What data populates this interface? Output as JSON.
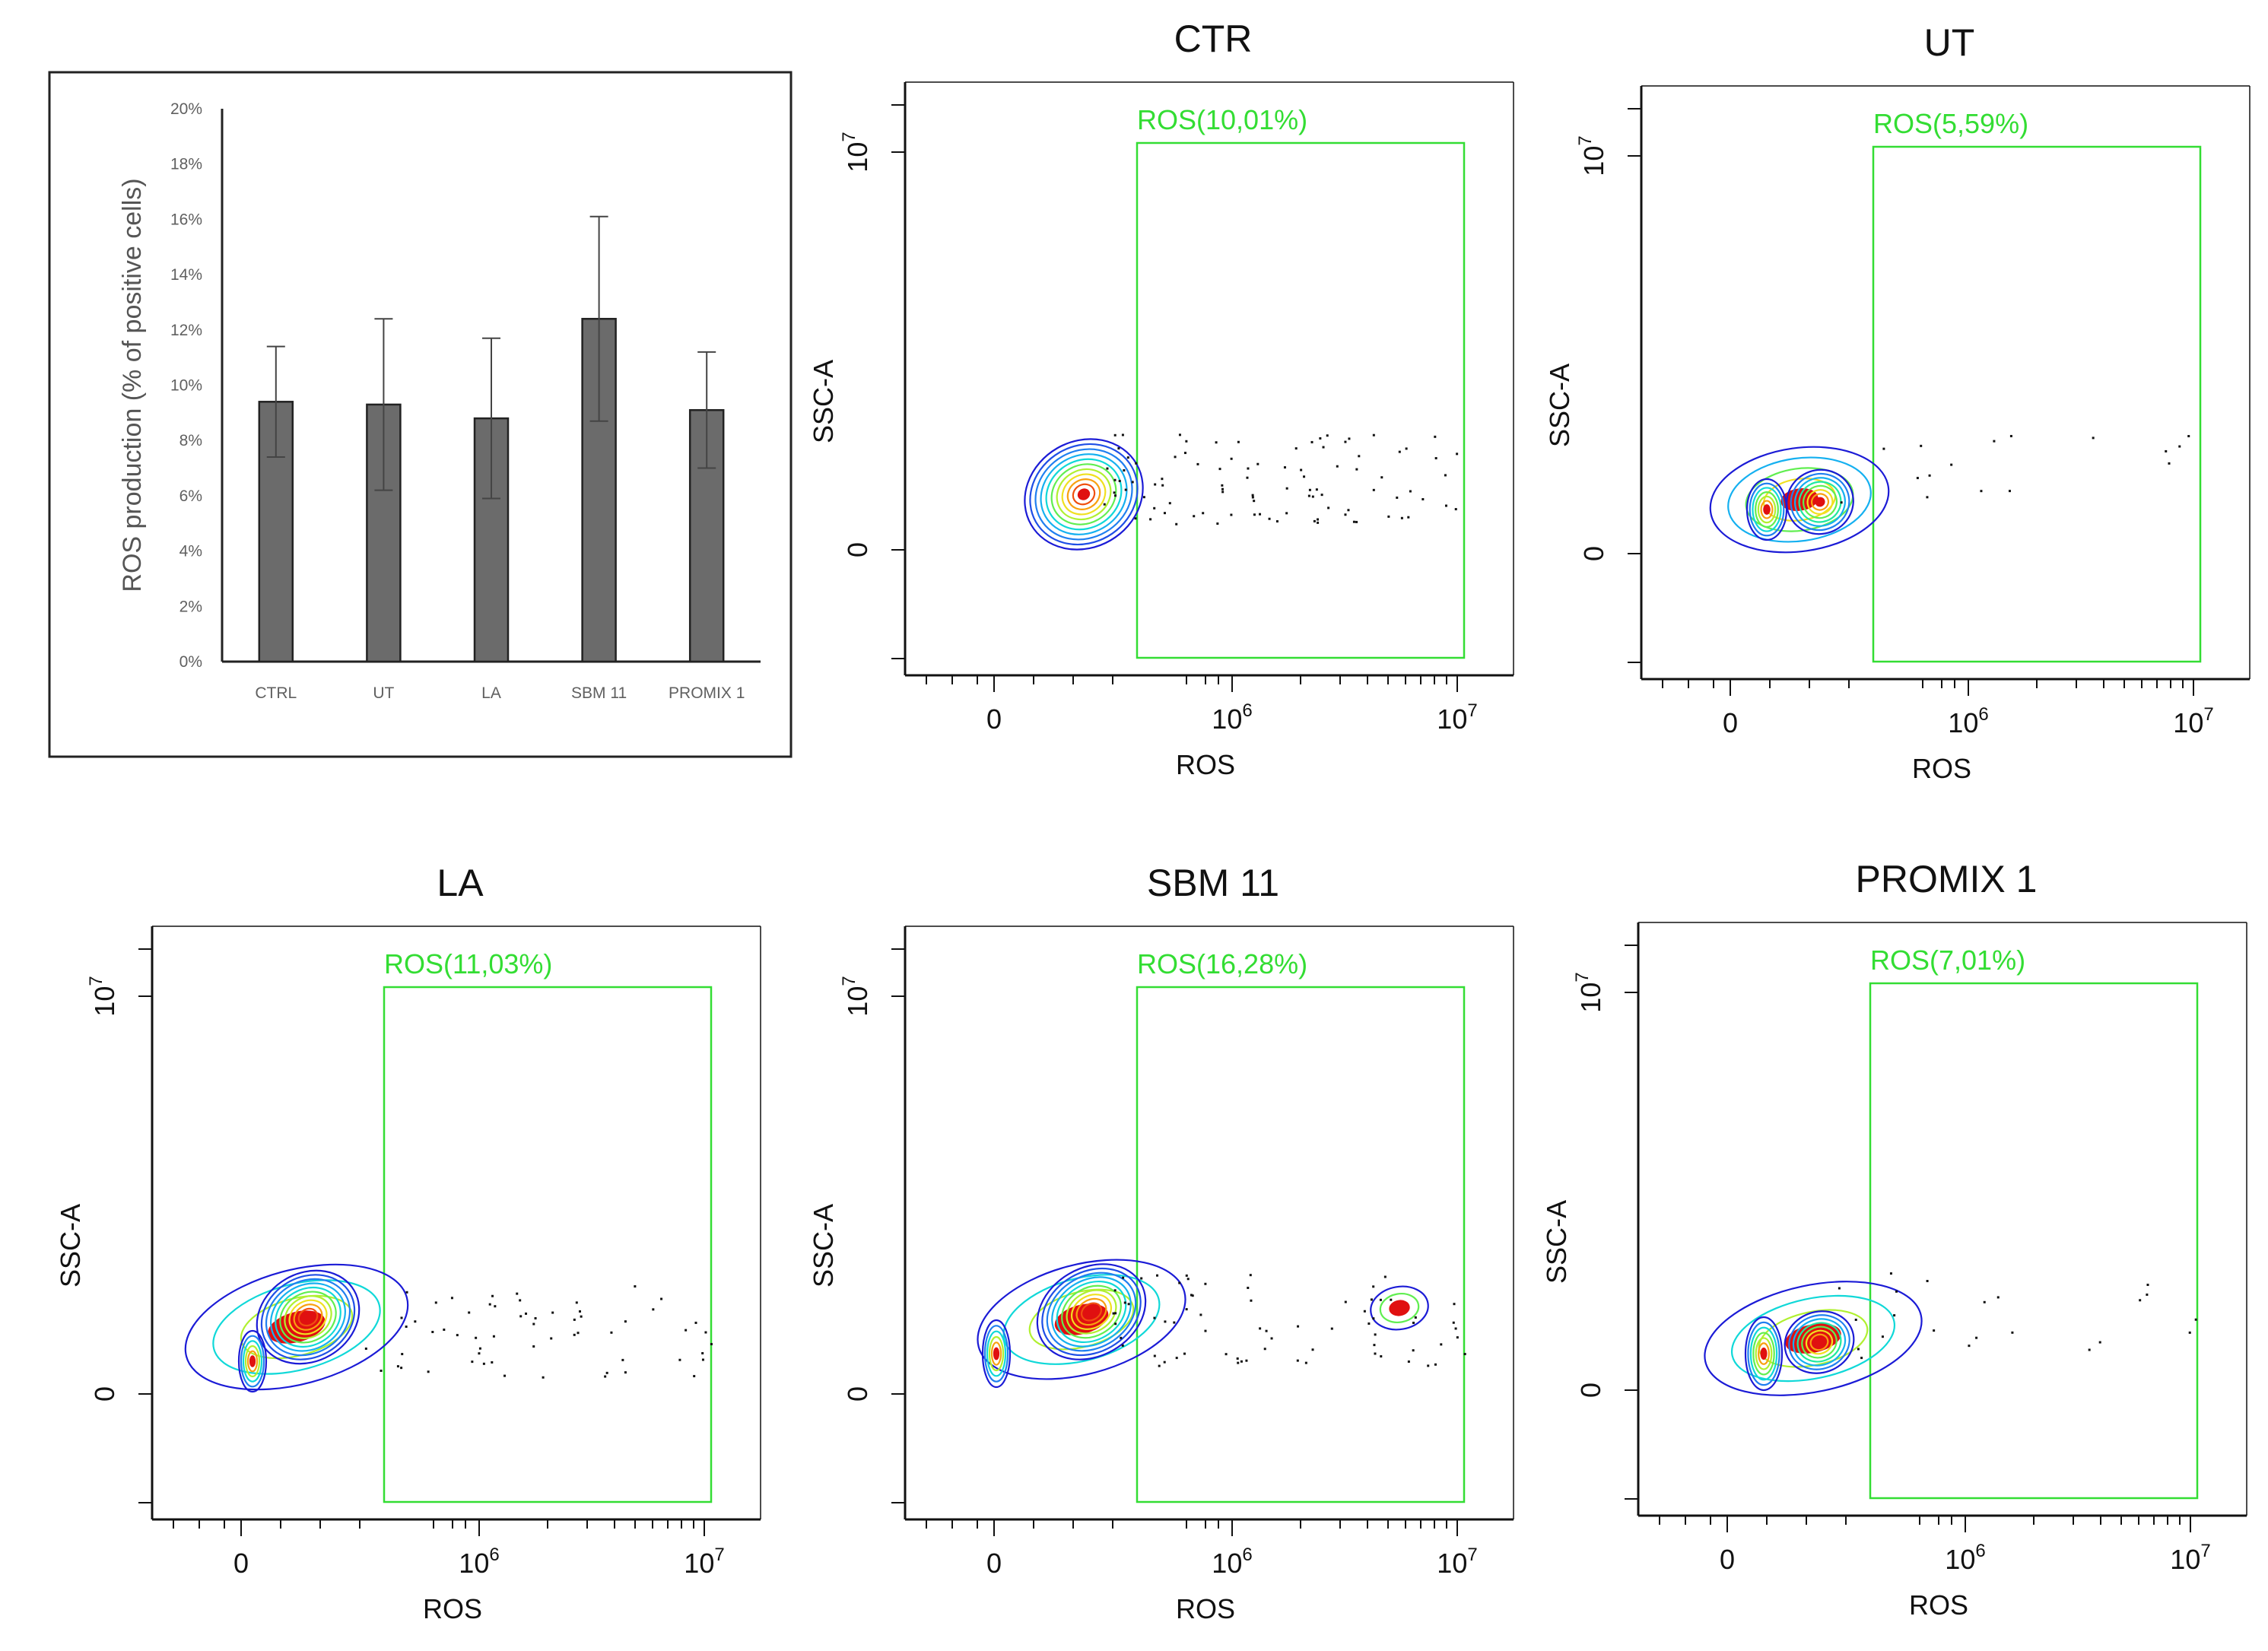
{
  "chart_data": [
    {
      "type": "bar",
      "ylabel": "ROS production  (% of positive cells)",
      "categories": [
        "CTRL",
        "UT",
        "LA",
        "SBM 11",
        "PROMIX 1"
      ],
      "values": [
        9.4,
        9.3,
        8.8,
        12.4,
        9.1
      ],
      "error": [
        2.0,
        3.1,
        2.9,
        3.7,
        2.1
      ],
      "ylim": [
        0,
        20
      ],
      "yticks": [
        "0%",
        "2%",
        "4%",
        "6%",
        "8%",
        "10%",
        "12%",
        "14%",
        "16%",
        "18%",
        "20%"
      ],
      "bar_color": "#6b6b6b"
    },
    {
      "type": "scatter",
      "title": "CTR",
      "xlabel": "ROS",
      "ylabel": "SSC-A",
      "gate_label": "ROS(10,01%)",
      "gate_color": "#33dd33",
      "x_ticks": [
        "0",
        "10",
        "10"
      ],
      "x_tick_exponents": [
        "",
        "6",
        "7"
      ],
      "y_ticks": [
        "0",
        "10"
      ],
      "y_tick_exponents": [
        "",
        "7"
      ]
    },
    {
      "type": "scatter",
      "title": "UT",
      "xlabel": "ROS",
      "ylabel": "SSC-A",
      "gate_label": "ROS(5,59%)",
      "gate_color": "#33dd33",
      "x_ticks": [
        "0",
        "10",
        "10"
      ],
      "x_tick_exponents": [
        "",
        "6",
        "7"
      ],
      "y_ticks": [
        "0",
        "10"
      ],
      "y_tick_exponents": [
        "",
        "7"
      ]
    },
    {
      "type": "scatter",
      "title": "LA",
      "xlabel": "ROS",
      "ylabel": "SSC-A",
      "gate_label": "ROS(11,03%)",
      "gate_color": "#33dd33",
      "x_ticks": [
        "0",
        "10",
        "10"
      ],
      "x_tick_exponents": [
        "",
        "6",
        "7"
      ],
      "y_ticks": [
        "0",
        "10"
      ],
      "y_tick_exponents": [
        "",
        "7"
      ]
    },
    {
      "type": "scatter",
      "title": "SBM 11",
      "xlabel": "ROS",
      "ylabel": "SSC-A",
      "gate_label": "ROS(16,28%)",
      "gate_color": "#33dd33",
      "x_ticks": [
        "0",
        "10",
        "10"
      ],
      "x_tick_exponents": [
        "",
        "6",
        "7"
      ],
      "y_ticks": [
        "0",
        "10"
      ],
      "y_tick_exponents": [
        "",
        "7"
      ]
    },
    {
      "type": "scatter",
      "title": "PROMIX 1",
      "xlabel": "ROS",
      "ylabel": "SSC-A",
      "gate_label": "ROS(7,01%)",
      "gate_color": "#33dd33",
      "x_ticks": [
        "0",
        "10",
        "10"
      ],
      "x_tick_exponents": [
        "",
        "6",
        "7"
      ],
      "y_ticks": [
        "0",
        "10"
      ],
      "y_tick_exponents": [
        "",
        "7"
      ]
    }
  ]
}
